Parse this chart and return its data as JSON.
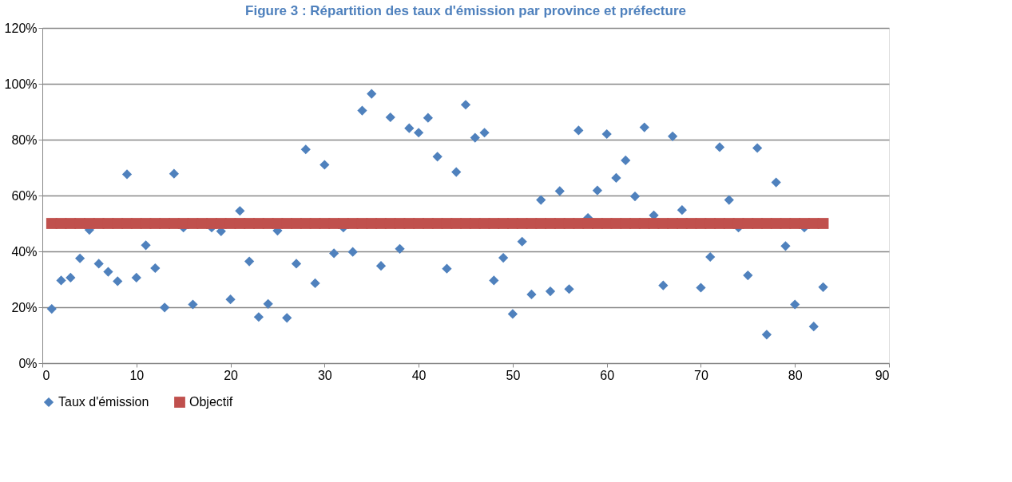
{
  "chart_data": {
    "type": "scatter",
    "title": "Figure 3 : Répartition des taux d'émission par province et préfecture",
    "series": [
      {
        "name": "Taux d'émission",
        "color": "#4f81bd",
        "marker": "diamond",
        "x": [
          1,
          2,
          3,
          4,
          5,
          6,
          7,
          8,
          9,
          10,
          11,
          12,
          13,
          14,
          15,
          16,
          17,
          18,
          19,
          20,
          21,
          22,
          23,
          24,
          25,
          26,
          27,
          28,
          29,
          30,
          31,
          32,
          33,
          34,
          35,
          36,
          37,
          38,
          39,
          40,
          41,
          42,
          43,
          44,
          45,
          46,
          47,
          48,
          49,
          50,
          51,
          52,
          53,
          54,
          55,
          56,
          57,
          58,
          59,
          60,
          61,
          62,
          63,
          64,
          65,
          66,
          67,
          68,
          69,
          70,
          71,
          72,
          73,
          74,
          75,
          76,
          77,
          78,
          79,
          80,
          81,
          82,
          83
        ],
        "values": [
          19.4,
          29.6,
          30.6,
          37.5,
          47.7,
          35.6,
          32.7,
          29.3,
          67.6,
          30.6,
          42.2,
          34,
          19.9,
          67.8,
          48.5,
          21,
          null,
          48.5,
          47.2,
          22.8,
          54.5,
          36.4,
          16.5,
          21.2,
          47.4,
          16.2,
          35.6,
          76.5,
          28.6,
          71,
          39.3,
          48.5,
          39.8,
          90.4,
          96.4,
          34.8,
          88,
          40.9,
          84.1,
          82.5,
          87.8,
          73.9,
          33.8,
          68.4,
          92.5,
          80.7,
          82.5,
          29.6,
          37.7,
          17.6,
          43.5,
          24.6,
          58.4,
          25.7,
          61.6,
          26.5,
          83.3,
          52,
          61.8,
          82,
          66.3,
          72.6,
          59.7,
          84.4,
          52.9,
          27.8,
          81.2,
          54.8,
          null,
          27,
          38,
          77.3,
          58.4,
          48.5,
          31.4,
          77,
          10.2,
          64.7,
          41.9,
          21,
          48.5,
          13.1,
          27.2
        ]
      },
      {
        "name": "Objectif",
        "color": "#c0504d",
        "marker": "square",
        "x": [
          1,
          2,
          3,
          4,
          5,
          6,
          7,
          8,
          9,
          10,
          11,
          12,
          13,
          14,
          15,
          16,
          17,
          18,
          19,
          20,
          21,
          22,
          23,
          24,
          25,
          26,
          27,
          28,
          29,
          30,
          31,
          32,
          33,
          34,
          35,
          36,
          37,
          38,
          39,
          40,
          41,
          42,
          43,
          44,
          45,
          46,
          47,
          48,
          49,
          50,
          51,
          52,
          53,
          54,
          55,
          56,
          57,
          58,
          59,
          60,
          61,
          62,
          63,
          64,
          65,
          66,
          67,
          68,
          69,
          70,
          71,
          72,
          73,
          74,
          75,
          76,
          77,
          78,
          79,
          80,
          81,
          82,
          83
        ],
        "values": [
          50,
          50,
          50,
          50,
          50,
          50,
          50,
          50,
          50,
          50,
          50,
          50,
          50,
          50,
          50,
          50,
          50,
          50,
          50,
          50,
          50,
          50,
          50,
          50,
          50,
          50,
          50,
          50,
          50,
          50,
          50,
          50,
          50,
          50,
          50,
          50,
          50,
          50,
          50,
          50,
          50,
          50,
          50,
          50,
          50,
          50,
          50,
          50,
          50,
          50,
          50,
          50,
          50,
          50,
          50,
          50,
          50,
          50,
          50,
          50,
          50,
          50,
          50,
          50,
          50,
          50,
          50,
          50,
          50,
          50,
          50,
          50,
          50,
          50,
          50,
          50,
          50,
          50,
          50,
          50,
          50,
          50,
          50
        ]
      }
    ],
    "xlim": [
      0,
      90
    ],
    "xticks": [
      0,
      10,
      20,
      30,
      40,
      50,
      60,
      70,
      80,
      90
    ],
    "ylim": [
      0,
      120
    ],
    "yticks": [
      {
        "value": 0,
        "label": "0%"
      },
      {
        "value": 20,
        "label": "20%"
      },
      {
        "value": 40,
        "label": "40%"
      },
      {
        "value": 60,
        "label": "60%"
      },
      {
        "value": 80,
        "label": "80%"
      },
      {
        "value": 100,
        "label": "100%"
      },
      {
        "value": 120,
        "label": "120%"
      }
    ],
    "grid": "y",
    "legend": "bottom"
  }
}
